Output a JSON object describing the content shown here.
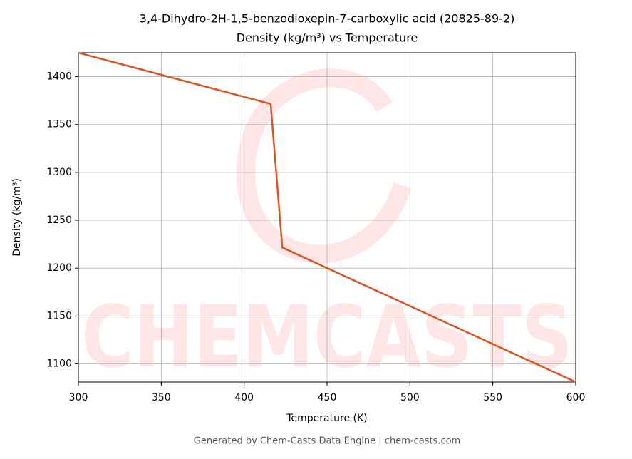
{
  "chart_data": {
    "type": "line",
    "title": "3,4-Dihydro-2H-1,5-benzodioxepin-7-carboxylic acid (20825-89-2)",
    "subtitle": "Density (kg/m³) vs Temperature",
    "x_label": "Temperature (K)",
    "y_label": "Density (kg/m³)",
    "x": [
      300,
      416,
      423,
      600
    ],
    "series": [
      {
        "name": "Density",
        "color": "#d9541e",
        "values": [
          1425,
          1371.5,
          1221.5,
          1081
        ]
      }
    ],
    "xlim": [
      300,
      600
    ],
    "xticks": [
      300,
      350,
      400,
      450,
      500,
      550,
      600
    ],
    "ylim": [
      1081,
      1425
    ],
    "yticks": [
      1100,
      1150,
      1200,
      1250,
      1300,
      1350,
      1400
    ],
    "grid": true,
    "watermark": "CHEMCASTS",
    "footer": "Generated by Chem-Casts Data Engine | chem-casts.com"
  }
}
